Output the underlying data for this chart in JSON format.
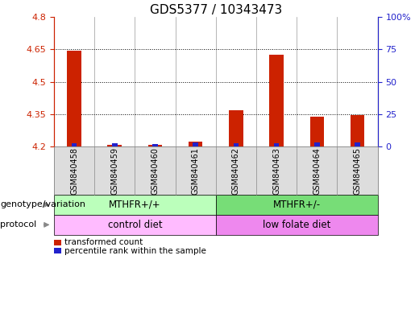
{
  "title": "GDS5377 / 10343473",
  "samples": [
    "GSM840458",
    "GSM840459",
    "GSM840460",
    "GSM840461",
    "GSM840462",
    "GSM840463",
    "GSM840464",
    "GSM840465"
  ],
  "red_values": [
    4.645,
    4.21,
    4.21,
    4.222,
    4.37,
    4.625,
    4.34,
    4.345
  ],
  "blue_values": [
    4.215,
    4.215,
    4.213,
    4.22,
    4.215,
    4.215,
    4.22,
    4.22
  ],
  "base": 4.2,
  "ylim_left": [
    4.2,
    4.8
  ],
  "ylim_right": [
    0,
    100
  ],
  "yticks_left": [
    4.2,
    4.35,
    4.5,
    4.65,
    4.8
  ],
  "yticks_right": [
    0,
    25,
    50,
    75,
    100
  ],
  "ytick_labels_left": [
    "4.2",
    "4.35",
    "4.5",
    "4.65",
    "4.8"
  ],
  "ytick_labels_right": [
    "0",
    "25",
    "50",
    "75",
    "100%"
  ],
  "hlines": [
    4.35,
    4.5,
    4.65
  ],
  "bar_width": 0.35,
  "blue_bar_width": 0.13,
  "red_color": "#cc2200",
  "blue_color": "#2222cc",
  "genotype_groups": [
    {
      "label": "MTHFR+/+",
      "start": 0,
      "end": 4,
      "color": "#bbffbb"
    },
    {
      "label": "MTHFR+/-",
      "start": 4,
      "end": 8,
      "color": "#77dd77"
    }
  ],
  "protocol_groups": [
    {
      "label": "control diet",
      "start": 0,
      "end": 4,
      "color": "#ffbbff"
    },
    {
      "label": "low folate diet",
      "start": 4,
      "end": 8,
      "color": "#ee88ee"
    }
  ],
  "genotype_label": "genotype/variation",
  "protocol_label": "protocol",
  "legend_red": "transformed count",
  "legend_blue": "percentile rank within the sample",
  "tick_fontsize": 8,
  "title_fontsize": 11,
  "xlim": [
    -0.5,
    7.5
  ]
}
